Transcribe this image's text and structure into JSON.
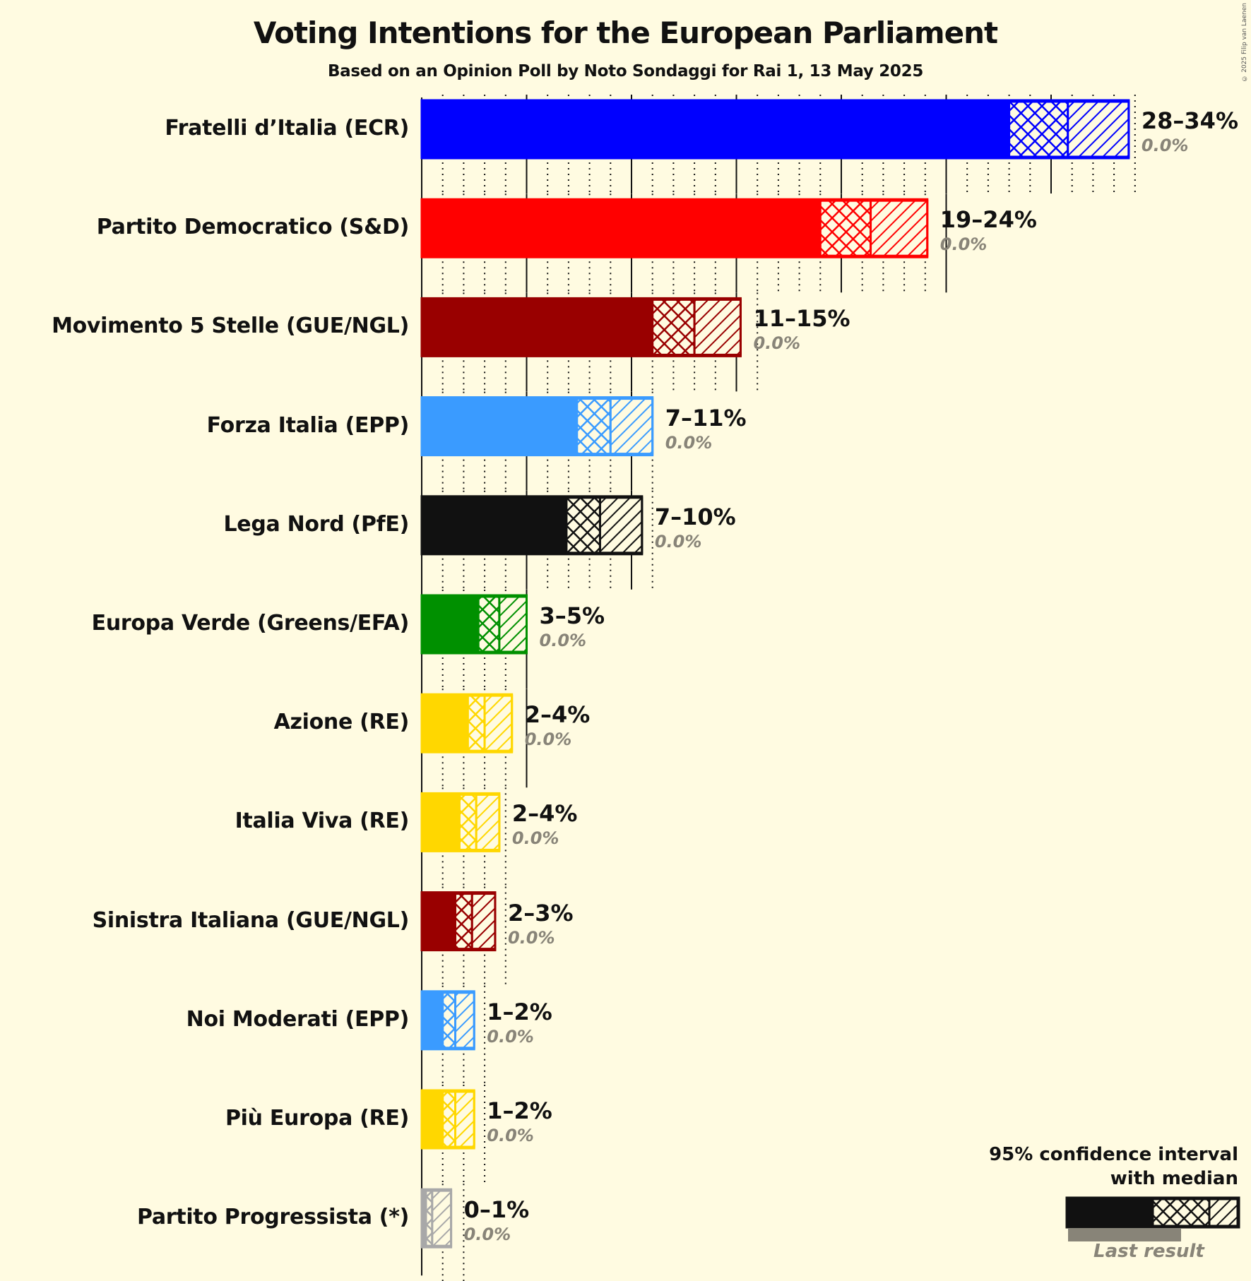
{
  "header": {
    "title": "Voting Intentions for the European Parliament",
    "subtitle": "Based on an Opinion Poll by Noto Sondaggi for Rai 1, 13 May 2025",
    "copyright": "© 2025 Filip van Laenen"
  },
  "legend": {
    "line1": "95% confidence interval",
    "line2": "with median",
    "last_result": "Last result"
  },
  "chart_data": {
    "type": "bar",
    "orientation": "horizontal",
    "title": "Voting Intentions for the European Parliament",
    "subtitle": "Based on an Opinion Poll by Noto Sondaggi for Rai 1, 13 May 2025",
    "xlabel": "",
    "ylabel": "",
    "xlim": [
      0,
      35
    ],
    "major_gridlines_every": 5,
    "minor_gridlines_every": 1,
    "legend_position": "bottom-right",
    "categories": [
      "Fratelli d’Italia (ECR)",
      "Partito Democratico (S&D)",
      "Movimento 5 Stelle (GUE/NGL)",
      "Forza Italia (EPP)",
      "Lega Nord (PfE)",
      "Europa Verde (Greens/EFA)",
      "Azione (RE)",
      "Italia Viva (RE)",
      "Sinistra Italiana (GUE/NGL)",
      "Noi Moderati (EPP)",
      "Più Europa (RE)",
      "Partito Progressista (*)"
    ],
    "series": [
      {
        "name": "CI lower",
        "values": [
          28.0,
          19.0,
          11.0,
          7.4,
          6.9,
          2.7,
          2.2,
          1.8,
          1.6,
          1.0,
          1.0,
          0.2
        ]
      },
      {
        "name": "Median",
        "values": [
          30.8,
          21.4,
          13.0,
          9.0,
          8.5,
          3.7,
          3.0,
          2.6,
          2.4,
          1.6,
          1.6,
          0.5
        ]
      },
      {
        "name": "CI upper",
        "values": [
          33.7,
          24.1,
          15.2,
          11.0,
          10.5,
          5.0,
          4.3,
          3.7,
          3.5,
          2.5,
          2.5,
          1.4
        ]
      },
      {
        "name": "Last result",
        "values": [
          0.0,
          0.0,
          0.0,
          0.0,
          0.0,
          0.0,
          0.0,
          0.0,
          0.0,
          0.0,
          0.0,
          0.0
        ]
      }
    ],
    "range_labels": [
      "28–34%",
      "19–24%",
      "11–15%",
      "7–11%",
      "7–10%",
      "3–5%",
      "2–4%",
      "2–4%",
      "2–3%",
      "1–2%",
      "1–2%",
      "0–1%"
    ],
    "last_result_labels": [
      "0.0%",
      "0.0%",
      "0.0%",
      "0.0%",
      "0.0%",
      "0.0%",
      "0.0%",
      "0.0%",
      "0.0%",
      "0.0%",
      "0.0%",
      "0.0%"
    ],
    "colors": [
      "#0000ff",
      "#ff0000",
      "#990000",
      "#3a9bff",
      "#111111",
      "#009000",
      "#ffd700",
      "#ffd700",
      "#990000",
      "#3a9bff",
      "#ffd700",
      "#a8a8a8"
    ]
  }
}
